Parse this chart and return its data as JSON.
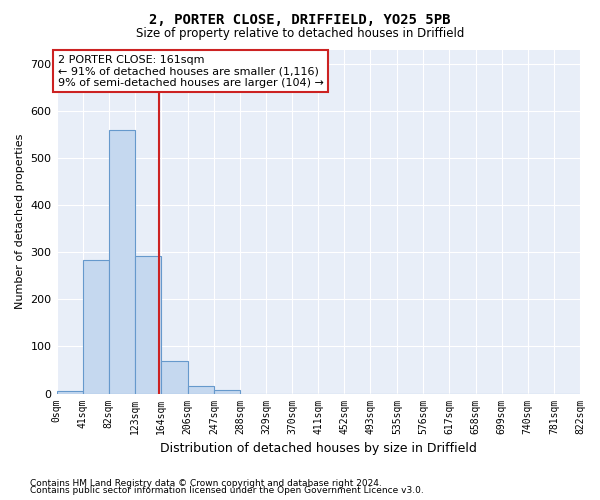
{
  "title1": "2, PORTER CLOSE, DRIFFIELD, YO25 5PB",
  "title2": "Size of property relative to detached houses in Driffield",
  "xlabel": "Distribution of detached houses by size in Driffield",
  "ylabel": "Number of detached properties",
  "footer1": "Contains HM Land Registry data © Crown copyright and database right 2024.",
  "footer2": "Contains public sector information licensed under the Open Government Licence v3.0.",
  "bin_edges": [
    0,
    41,
    82,
    123,
    164,
    206,
    247,
    288,
    329,
    370,
    411,
    452,
    493,
    535,
    576,
    617,
    658,
    699,
    740,
    781,
    822
  ],
  "bin_counts": [
    5,
    283,
    561,
    293,
    70,
    15,
    8,
    0,
    0,
    0,
    0,
    0,
    0,
    0,
    0,
    0,
    0,
    0,
    0,
    0
  ],
  "bar_color": "#c5d8ef",
  "bar_edge_color": "#6699cc",
  "vline_x": 161,
  "vline_color": "#cc2222",
  "annotation_line1": "2 PORTER CLOSE: 161sqm",
  "annotation_line2": "← 91% of detached houses are smaller (1,116)",
  "annotation_line3": "9% of semi-detached houses are larger (104) →",
  "annotation_box_color": "#cc2222",
  "annotation_text_color": "#000000",
  "background_color": "#ffffff",
  "plot_bg_color": "#e8eef8",
  "ylim": [
    0,
    730
  ],
  "xlim_left": 0,
  "xlim_right": 822,
  "yticks": [
    0,
    100,
    200,
    300,
    400,
    500,
    600,
    700
  ]
}
